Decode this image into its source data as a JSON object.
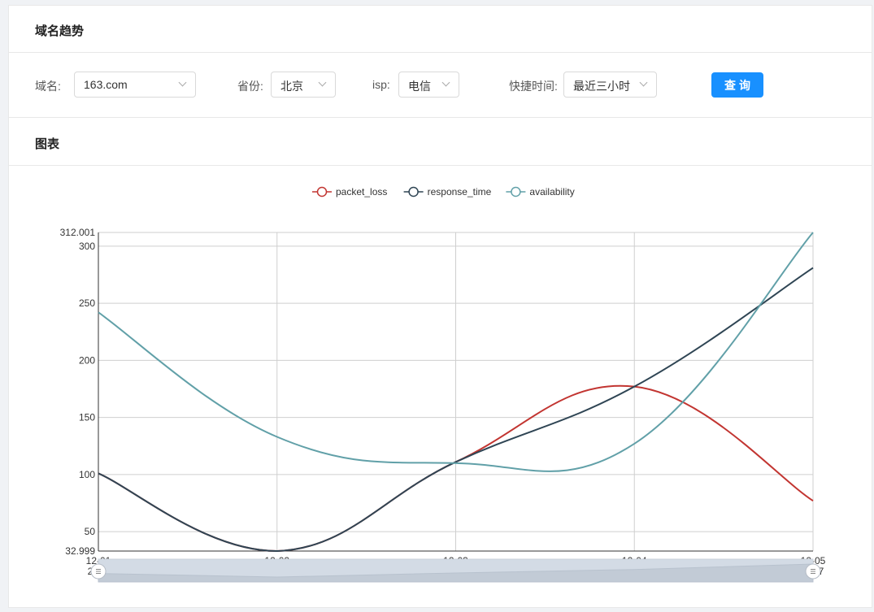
{
  "panel": {
    "title": "域名趋势"
  },
  "filters": {
    "domain_label": "域名:",
    "domain_value": "163.com",
    "province_label": "省份:",
    "province_value": "北京",
    "isp_label": "isp:",
    "isp_value": "电信",
    "time_label": "快捷时间:",
    "time_value": "最近三小时",
    "query_button": "查询"
  },
  "chart_section": {
    "title": "图表"
  },
  "chart_data": {
    "type": "line",
    "categories": [
      "12-01",
      "12-02",
      "12-03",
      "12-04",
      "12-05"
    ],
    "category_year": "2017",
    "ylim": [
      32.999,
      312.001
    ],
    "yticks": [
      50,
      100,
      150,
      200,
      250,
      300
    ],
    "ymin_label": "32.999",
    "ymax_label": "312.001",
    "grid": true,
    "legend_position": "top-center",
    "smooth": true,
    "series": [
      {
        "name": "packet_loss",
        "color": "#c23531",
        "values": [
          101,
          33,
          111,
          177,
          77
        ]
      },
      {
        "name": "response_time",
        "color": "#2f4554",
        "values": [
          101,
          33,
          111,
          177,
          281
        ]
      },
      {
        "name": "availability",
        "color": "#61a0a8",
        "values": [
          242,
          133,
          110,
          127,
          312
        ]
      }
    ],
    "data_zoom": {
      "start": 0,
      "end": 100
    }
  }
}
